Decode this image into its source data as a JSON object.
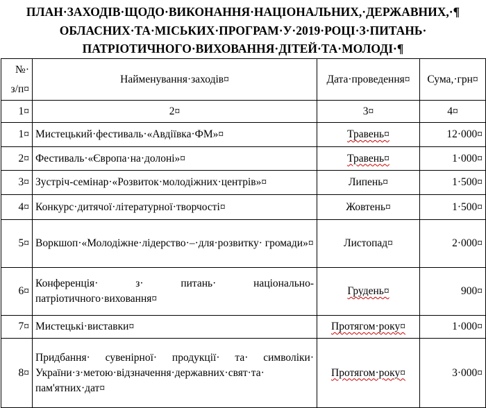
{
  "title": {
    "line1": "ПЛАН·ЗАХОДІВ·ЩОДО·ВИКОНАННЯ·НАЦІОНАЛЬНИХ,·ДЕРЖАВНИХ,·¶",
    "line2": "ОБЛАСНИХ·ТА·МІСЬКИХ·ПРОГРАМ·У·2019·РОЦІ·З·ПИТАНЬ·",
    "line3": "ПАТРІОТИЧНОГО·ВИХОВАННЯ·ДІТЕЙ·ТА·МОЛОДІ·¶"
  },
  "table": {
    "headers": {
      "num_line1": "№·",
      "num_line2": "з/п¤",
      "name": "Найменування·заходів¤",
      "date": "Дата·проведення¤",
      "sum": "Сума,·грн¤"
    },
    "index_row": [
      "1¤",
      "2¤",
      "3¤",
      "4¤"
    ],
    "rows": [
      {
        "num": "1¤",
        "name": "Мистецький·фестиваль·«Авдіївка·ФМ»¤",
        "date": "Травень¤",
        "sum": "12·000¤"
      },
      {
        "num": "2¤",
        "name": "Фестиваль·«Європа·на·долоні»¤",
        "date": "Травень¤",
        "sum": "1·000¤"
      },
      {
        "num": "3¤",
        "name": "Зустріч-семінар·«Розвиток·молодіжних·центрів»¤",
        "date": "Липень¤",
        "sum": "1·500¤"
      },
      {
        "num": "4¤",
        "name": "Конкурс·дитячої·літературної·творчості¤",
        "date": "Жовтень¤",
        "sum": "1·500¤"
      },
      {
        "num": "5¤",
        "name": "Воркшоп·«Молодіжне·лідерство·–·для·розвитку· громади»¤",
        "date": "Листопад¤",
        "sum": "2·000¤"
      },
      {
        "num": "6¤",
        "name": "Конференція· з· питань· національно-патріотичного·виховання¤",
        "date": "Грудень¤",
        "sum": "900¤"
      },
      {
        "num": "7¤",
        "name": "Мистецькі·виставки¤",
        "date": "Протягом·року¤",
        "sum": "1·000¤"
      },
      {
        "num": "8¤",
        "name": "Придбання· сувенірної· продукції· та· символіки· України·з·метою·відзначення·державних·свят·та· пам'ятних·дат¤",
        "date": "Протягом·року¤",
        "sum": "3·000¤"
      }
    ]
  }
}
